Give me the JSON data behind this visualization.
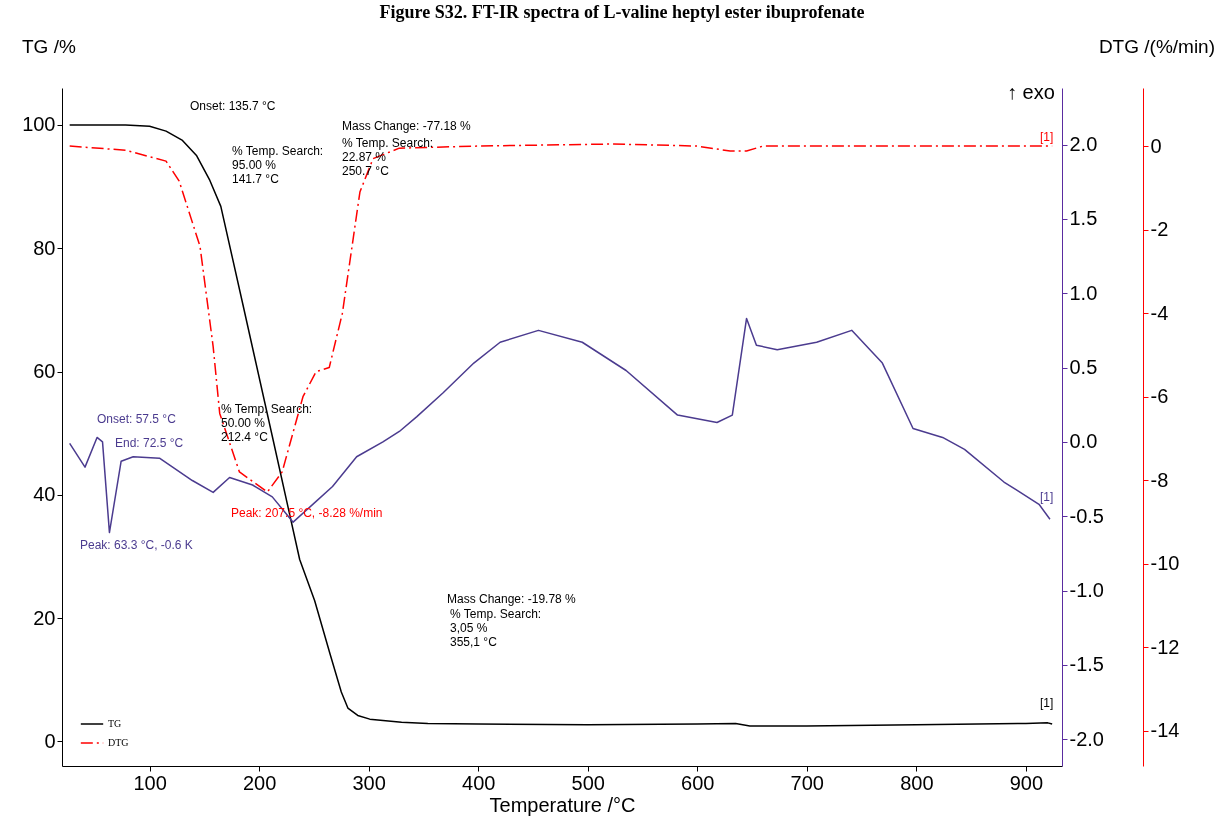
{
  "chart_data": {
    "type": "line",
    "title": "Figure S32. FT-IR spectra of L-valine heptyl ester ibuprofenate",
    "xlabel": "Temperature /°C",
    "ylabel": "TG /%",
    "y3label": "DTG /(%/min)",
    "xlim": [
      20,
      933
    ],
    "xticks": [
      100,
      200,
      300,
      400,
      500,
      600,
      700,
      800,
      900
    ],
    "ylim": [
      -4,
      106
    ],
    "yticks": [
      0,
      20,
      40,
      60,
      80,
      100
    ],
    "y2lim": [
      -2.18,
      2.38
    ],
    "y2ticks": [
      {
        "value": -2,
        "label": "-2.0"
      },
      {
        "value": -1.5,
        "label": "-1.5"
      },
      {
        "value": -1,
        "label": "-1.0"
      },
      {
        "value": -0.5,
        "label": "-0.5"
      },
      {
        "value": 0,
        "label": "0.0"
      },
      {
        "value": 0.5,
        "label": "0.5"
      },
      {
        "value": 1,
        "label": "1.0"
      },
      {
        "value": 1.5,
        "label": "1.5"
      },
      {
        "value": 2,
        "label": "2.0"
      }
    ],
    "y3lim": [
      -14.84,
      1.39
    ],
    "y3ticks": [
      -14,
      -12,
      -10,
      -8,
      -6,
      -4,
      -2,
      0
    ],
    "grid": false,
    "legend": "bottom left",
    "marker": "none",
    "series": [
      {
        "name": "TG",
        "color": "#000000",
        "line_style": "solid",
        "x": [
          27,
          50,
          78,
          100,
          115,
          130,
          143,
          155,
          165,
          185,
          212,
          237,
          250.7,
          265,
          275,
          281,
          290,
          301,
          330,
          354,
          400,
          500,
          600,
          635,
          648,
          700,
          800,
          900,
          920,
          924
        ],
        "values": [
          100,
          100,
          100,
          99.8,
          99,
          97.5,
          95,
          91,
          86.8,
          71,
          49.5,
          29.5,
          22.8,
          14,
          8,
          5.4,
          4.2,
          3.6,
          3.1,
          2.9,
          2.8,
          2.7,
          2.8,
          2.9,
          2.5,
          2.5,
          2.7,
          2.9,
          3.0,
          2.8
        ]
      },
      {
        "name": null,
        "color": "#4b3b8f",
        "line_style": "solid",
        "axis": "y2",
        "x": [
          27,
          41,
          52,
          57,
          63.3,
          74,
          85,
          109,
          139,
          158,
          173,
          194,
          212,
          231,
          252,
          267,
          289,
          313,
          328,
          344,
          368,
          396,
          420,
          455,
          495,
          535,
          582,
          618,
          632,
          645,
          654,
          673,
          709,
          741,
          769,
          797,
          824,
          844,
          880,
          912,
          922
        ],
        "values": [
          -0.01,
          -0.17,
          0.03,
          0,
          -0.61,
          -0.13,
          -0.1,
          -0.11,
          -0.26,
          -0.34,
          -0.24,
          -0.29,
          -0.37,
          -0.54,
          -0.4,
          -0.3,
          -0.1,
          0.0,
          0.07,
          0.17,
          0.33,
          0.53,
          0.67,
          0.75,
          0.67,
          0.48,
          0.18,
          0.13,
          0.18,
          0.83,
          0.65,
          0.62,
          0.67,
          0.75,
          0.53,
          0.09,
          0.03,
          -0.05,
          -0.27,
          -0.42,
          -0.52
        ]
      },
      {
        "name": "DTG",
        "color": "#ff0000",
        "line_style": "dashed",
        "axis": "y3",
        "x": [
          27,
          78,
          115,
          127,
          146,
          158,
          164,
          182,
          207.5,
          221,
          240,
          252,
          264,
          276,
          292,
          304,
          328,
          400,
          523,
          600,
          630,
          645,
          660,
          700,
          800,
          924
        ],
        "values": [
          0,
          -0.1,
          -0.36,
          -0.84,
          -2.4,
          -4.8,
          -6.4,
          -7.8,
          -8.28,
          -7.8,
          -6.0,
          -5.4,
          -5.3,
          -4.0,
          -1.1,
          -0.3,
          -0.05,
          0,
          0.05,
          0,
          -0.12,
          -0.12,
          0,
          0,
          0,
          0
        ]
      }
    ],
    "annotations": [
      "Onset: 135.7 °C",
      "Mass Change: -77.18 %",
      "% Temp. Search:\n 22.87 %\n250.7 °C",
      "% Temp. Search:\n 95.00 %\n141.7 °C",
      "% Temp. Search:\n 50.00 %\n212.4 °C",
      "Peak: 207.5 °C, -8.28 %/min",
      "Onset: 57.5 °C",
      "End: 72.5 °C",
      "Peak: 63.3 °C, -0.6 K",
      "Mass Change: -19.78 %",
      "% Temp. Search:\n3,05 %\n355,1 °C",
      "↑ exo",
      "[1]",
      "[1]",
      "[1]"
    ]
  }
}
